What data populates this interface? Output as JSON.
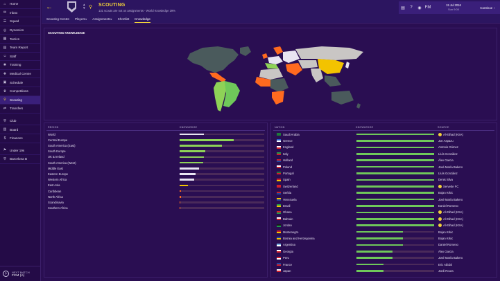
{
  "sidebar": {
    "items": [
      {
        "label": "Home",
        "icon": "home-icon",
        "glyph": "⌂"
      },
      {
        "label": "Inbox",
        "icon": "inbox-icon",
        "glyph": "✉"
      },
      {
        "label": "Squad",
        "icon": "squad-icon",
        "glyph": "☰"
      },
      {
        "label": "Dynamics",
        "icon": "dynamics-icon",
        "glyph": "◎"
      },
      {
        "label": "Tactics",
        "icon": "tactics-icon",
        "glyph": "▦"
      },
      {
        "label": "Team Report",
        "icon": "team-report-icon",
        "glyph": "▤"
      },
      {
        "label": "Staff",
        "icon": "staff-icon",
        "glyph": "☺"
      },
      {
        "label": "Training",
        "icon": "training-icon",
        "glyph": "✱"
      },
      {
        "label": "Medical Centre",
        "icon": "medical-icon",
        "glyph": "✚"
      },
      {
        "label": "Schedule",
        "icon": "schedule-icon",
        "glyph": "▣"
      },
      {
        "label": "Competitions",
        "icon": "competitions-icon",
        "glyph": "♛"
      },
      {
        "label": "Scouting",
        "icon": "scouting-icon",
        "glyph": "⚲",
        "active": true
      },
      {
        "label": "Transfers",
        "icon": "transfers-icon",
        "glyph": "⇄"
      },
      {
        "label": "Club",
        "icon": "club-icon",
        "glyph": "⛨",
        "gap": true
      },
      {
        "label": "Board",
        "icon": "board-icon",
        "glyph": "▥"
      },
      {
        "label": "Finances",
        "icon": "finances-icon",
        "glyph": "$"
      },
      {
        "label": "Under 19s",
        "icon": "under19-icon",
        "glyph": "⚑",
        "gap": true
      },
      {
        "label": "Barcelona B",
        "icon": "barcelona-b-icon",
        "glyph": "⛨"
      }
    ],
    "next_match_label": "NEXT MATCH",
    "next_match_value": "FCM (A)"
  },
  "header": {
    "title": "SCOUTING",
    "subtitle": "131 scouts are not on assignments - World Knowledge 29%",
    "date_line1": "15 Jul 2016",
    "date_line2": "Sun 9:00",
    "fm_label": "FM",
    "continue_label": "Continue"
  },
  "tabs": [
    {
      "label": "Scouting Centre",
      "caret": ""
    },
    {
      "label": "Players",
      "caret": "▾"
    },
    {
      "label": "Assignments",
      "caret": "▾"
    },
    {
      "label": "Shortlist",
      "caret": ""
    },
    {
      "label": "Knowledge",
      "caret": "",
      "active": true
    }
  ],
  "map": {
    "title": "SCOUTING KNOWLEDGE"
  },
  "colors": {
    "bar_regions": "#8ed257",
    "bar_nations": "#6fc85a",
    "bar_low": "#e8e4f2",
    "bar_orange": "#ff6a1f",
    "bar_yellow": "#f3c300",
    "bar_bg": "#4a2a5a"
  },
  "regions": {
    "header_region": "REGION",
    "header_knowledge": "KNOWLEDGE",
    "rows": [
      {
        "name": "World",
        "value": 0.29,
        "color": "low"
      },
      {
        "name": "Central Europe",
        "value": 0.64,
        "color": "green"
      },
      {
        "name": "South America (East)",
        "value": 0.5,
        "color": "green"
      },
      {
        "name": "South Europe",
        "value": 0.3,
        "color": "green"
      },
      {
        "name": "UK & Ireland",
        "value": 0.29,
        "color": "green"
      },
      {
        "name": "South America (West)",
        "value": 0.28,
        "color": "green"
      },
      {
        "name": "Middle East",
        "value": 0.23,
        "color": "low"
      },
      {
        "name": "Eastern Europe",
        "value": 0.19,
        "color": "low"
      },
      {
        "name": "Western Africa",
        "value": 0.17,
        "color": "low"
      },
      {
        "name": "East Asia",
        "value": 0.1,
        "color": "yellow"
      },
      {
        "name": "Caribbean",
        "value": 0.02,
        "color": "orange"
      },
      {
        "name": "North Africa",
        "value": 0.02,
        "color": "orange"
      },
      {
        "name": "Scandinavia",
        "value": 0.01,
        "color": "orange"
      },
      {
        "name": "Southern Africa",
        "value": 0.01,
        "color": "orange"
      }
    ]
  },
  "nations": {
    "header_nation": "NATION",
    "header_knowledge": "KNOWLEDGE",
    "header_source": "SOURCE",
    "rows": [
      {
        "name": "Saudi Arabia",
        "value": 1.0,
        "source": "Al-Ittihad (KSA)",
        "source_is_club": true,
        "flag": [
          "#1e7a3a",
          "#1e7a3a"
        ]
      },
      {
        "name": "Greece",
        "value": 1.0,
        "source": "Jon Aspazu",
        "flag": [
          "#2a5fc9",
          "#ffffff"
        ]
      },
      {
        "name": "England",
        "value": 1.0,
        "source": "Antonio Gómez",
        "flag": [
          "#ffffff",
          "#d21f2a"
        ]
      },
      {
        "name": "Italy",
        "value": 1.0,
        "source": "Lluís Gonzàlez",
        "flag": [
          "#1e9a4a",
          "#d21f2a"
        ]
      },
      {
        "name": "Holland",
        "value": 1.0,
        "source": "Àlex Garcia",
        "flag": [
          "#c8202a",
          "#2046a0"
        ]
      },
      {
        "name": "Poland",
        "value": 1.0,
        "source": "José María Bakero",
        "flag": [
          "#ffffff",
          "#d21f2a"
        ]
      },
      {
        "name": "Portugal",
        "value": 1.0,
        "source": "Lluís Gonzàlez",
        "flag": [
          "#1e7a3a",
          "#d21f2a"
        ]
      },
      {
        "name": "Spain",
        "value": 1.0,
        "source": "Denis Silva",
        "flag": [
          "#c8202a",
          "#f3c300"
        ]
      },
      {
        "name": "Switzerland",
        "value": 1.0,
        "source": "Servette FC",
        "source_is_club": true,
        "flag": [
          "#d21f2a",
          "#d21f2a"
        ]
      },
      {
        "name": "Serbia",
        "value": 1.0,
        "source": "Bojan Krkic",
        "flag": [
          "#c8202a",
          "#2046a0"
        ]
      },
      {
        "name": "Venezuela",
        "value": 1.0,
        "source": "José María Bakero",
        "flag": [
          "#f3c300",
          "#2046a0"
        ]
      },
      {
        "name": "Brazil",
        "value": 1.0,
        "source": "Daniel Romeno",
        "flag": [
          "#1e9a4a",
          "#f3c300"
        ]
      },
      {
        "name": "Ghana",
        "value": 1.0,
        "source": "Al-Ittihad (KSA)",
        "source_is_club": true,
        "flag": [
          "#d21f2a",
          "#1e9a4a"
        ]
      },
      {
        "name": "Bahrain",
        "value": 1.0,
        "source": "Al-Ittihad (KSA)",
        "source_is_club": true,
        "flag": [
          "#ffffff",
          "#c8202a"
        ]
      },
      {
        "name": "Jordan",
        "value": 1.0,
        "source": "Al-Ittihad (KSA)",
        "source_is_club": true,
        "flag": [
          "#1a1a1a",
          "#1e9a4a"
        ]
      },
      {
        "name": "Montenegro",
        "value": 0.6,
        "source": "Bojan Krkic",
        "flag": [
          "#c8202a",
          "#f3c300"
        ]
      },
      {
        "name": "Bosnia and Herzegovina",
        "value": 0.6,
        "source": "Bojan Krkic",
        "flag": [
          "#2046a0",
          "#f3c300"
        ]
      },
      {
        "name": "Argentina",
        "value": 0.6,
        "source": "Daniel Romeno",
        "flag": [
          "#7ab8e8",
          "#ffffff"
        ]
      },
      {
        "name": "Georgia",
        "value": 0.46,
        "source": "Àlex Garcia",
        "flag": [
          "#ffffff",
          "#d21f2a"
        ]
      },
      {
        "name": "Peru",
        "value": 0.46,
        "source": "José María Bakero",
        "flag": [
          "#d21f2a",
          "#ffffff"
        ]
      },
      {
        "name": "France",
        "value": 0.35,
        "source": "Eric Abidal",
        "flag": [
          "#2046a0",
          "#d21f2a"
        ]
      },
      {
        "name": "Japan",
        "value": 0.35,
        "source": "Jordi Roura",
        "flag": [
          "#ffffff",
          "#d21f2a"
        ]
      }
    ]
  }
}
